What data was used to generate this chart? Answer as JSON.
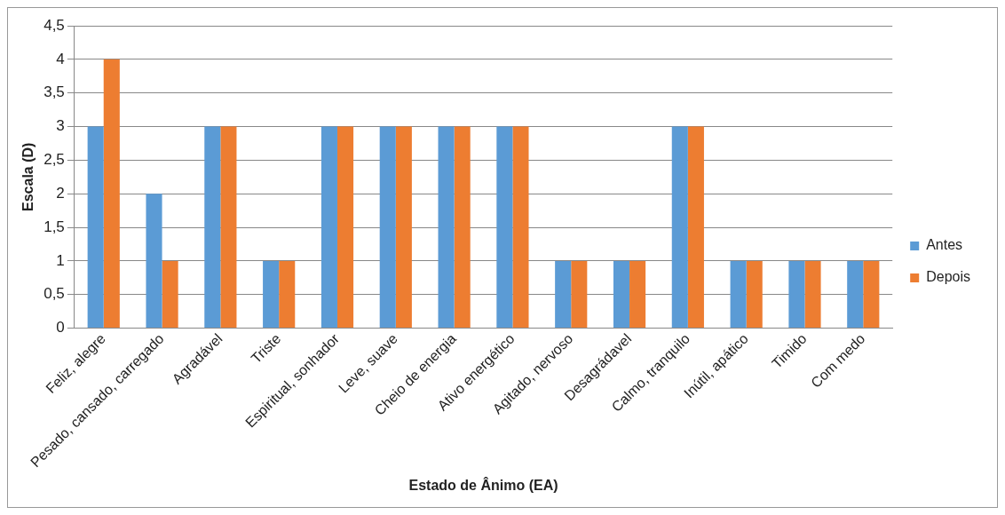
{
  "chart_data": {
    "type": "bar",
    "xlabel": "Estado de Ânimo (EA)",
    "ylabel": "Escala (D)",
    "categories": [
      "Feliz, alegre",
      "Pesado, cansado, carregado",
      "Agradável",
      "Triste",
      "Espiritual, sonhador",
      "Leve, suave",
      "Cheio de energia",
      "Ativo energético",
      "Agitado, nervoso",
      "Desagrádavel",
      "Calmo, tranquilo",
      "Inútil, apático",
      "Timido",
      "Com medo"
    ],
    "series": [
      {
        "name": "Antes",
        "color": "#5b9bd5",
        "values": [
          3,
          2,
          3,
          1,
          3,
          3,
          3,
          3,
          1,
          1,
          3,
          1,
          1,
          1
        ]
      },
      {
        "name": "Depois",
        "color": "#ed7d31",
        "values": [
          4,
          1,
          3,
          1,
          3,
          3,
          3,
          3,
          1,
          1,
          3,
          1,
          1,
          1
        ]
      }
    ],
    "ylim": [
      0,
      4.5
    ],
    "yticks": [
      0,
      {
        "value": 0.5,
        "label": "0,5"
      },
      1,
      {
        "value": 1.5,
        "label": "1,5"
      },
      2,
      {
        "value": 2.5,
        "label": "2,5"
      },
      3,
      {
        "value": 3.5,
        "label": "3,5"
      },
      4,
      {
        "value": 4.5,
        "label": "4,5"
      }
    ],
    "grid": "y",
    "legend": "right"
  }
}
